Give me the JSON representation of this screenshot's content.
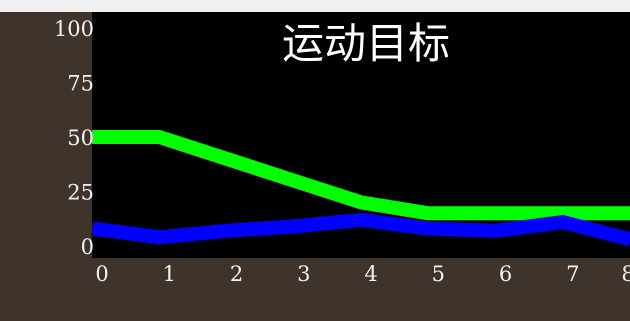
{
  "chart_data": {
    "type": "line",
    "title": "运动目标",
    "xlabel": "",
    "ylabel": "",
    "x": [
      0,
      1,
      2,
      3,
      4,
      5,
      6,
      7,
      8
    ],
    "xlim": [
      0,
      8
    ],
    "ylim": [
      0,
      100
    ],
    "y_ticks": [
      100,
      75,
      50,
      25,
      0
    ],
    "x_ticks": [
      0,
      1,
      2,
      3,
      4,
      5,
      6,
      7,
      8
    ],
    "grid": false,
    "series": [
      {
        "color": "#00ff00",
        "values": [
          50,
          50,
          40,
          30,
          20,
          15,
          15,
          15,
          15
        ]
      },
      {
        "color": "#0000ff",
        "values": [
          8,
          4,
          7,
          9,
          12,
          8,
          7,
          11,
          3
        ]
      }
    ],
    "colors": {
      "plot_background": "#000000",
      "outer_background": "#3f342c",
      "text": "#f2f2f2"
    }
  }
}
